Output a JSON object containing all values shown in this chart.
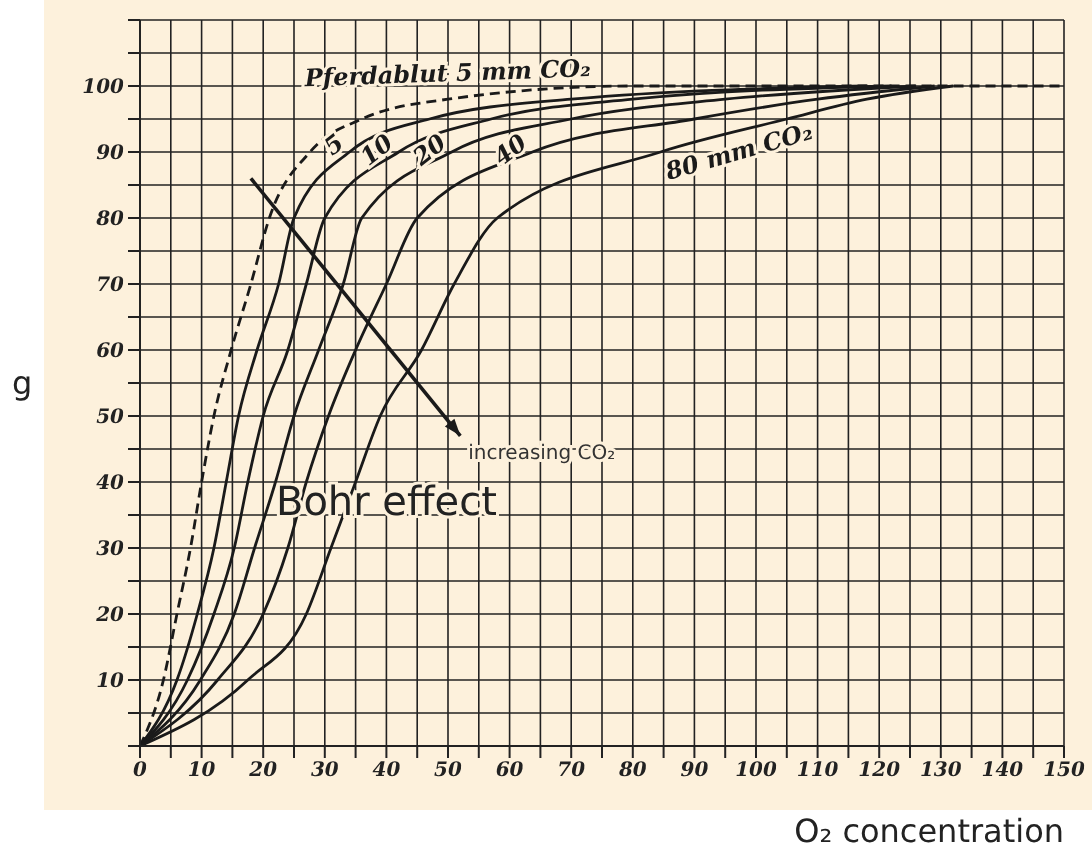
{
  "chart_data": {
    "type": "line",
    "ylabel": "g",
    "xlabel": "O₂ concentration",
    "annotations": [
      "Bohr effect",
      "increasing CO₂"
    ],
    "xlim": [
      0,
      150
    ],
    "xticks": [
      0,
      {
        "value": 5,
        "label": null
      },
      10,
      {
        "value": 15,
        "label": null
      },
      20,
      {
        "value": 25,
        "label": null
      },
      30,
      {
        "value": 35,
        "label": null
      },
      40,
      {
        "value": 45,
        "label": null
      },
      50,
      {
        "value": 55,
        "label": null
      },
      60,
      {
        "value": 65,
        "label": null
      },
      70,
      {
        "value": 75,
        "label": null
      },
      80,
      {
        "value": 85,
        "label": null
      },
      90,
      {
        "value": 95,
        "label": null
      },
      100,
      {
        "value": 105,
        "label": null
      },
      110,
      {
        "value": 115,
        "label": null
      },
      120,
      {
        "value": 125,
        "label": null
      },
      130,
      {
        "value": 135,
        "label": null
      },
      140,
      {
        "value": 145,
        "label": null
      },
      150
    ],
    "ylim": [
      0,
      110
    ],
    "yticks": [
      {
        "value": 0,
        "label": null
      },
      {
        "value": 5,
        "label": null
      },
      10,
      {
        "value": 15,
        "label": null
      },
      20,
      {
        "value": 25,
        "label": null
      },
      30,
      {
        "value": 35,
        "label": null
      },
      40,
      {
        "value": 45,
        "label": null
      },
      50,
      {
        "value": 55,
        "label": null
      },
      60,
      {
        "value": 65,
        "label": null
      },
      70,
      {
        "value": 75,
        "label": null
      },
      80,
      {
        "value": 85,
        "label": null
      },
      90,
      {
        "value": 95,
        "label": null
      },
      100,
      {
        "value": 105,
        "label": null
      },
      {
        "value": 110,
        "label": null
      }
    ],
    "grid": true,
    "marker": "none",
    "legend": false,
    "series": [
      {
        "name": "Pferdablut 5 mm CO₂",
        "color": "#1a1a1a",
        "line_style": "dashed",
        "x": [
          0,
          3.8,
          6,
          8.2,
          10,
          12,
          14.8,
          18,
          21,
          27.6,
          36,
          50,
          80,
          150
        ],
        "values": [
          0,
          10,
          20,
          30,
          40,
          50,
          60,
          70,
          80,
          90,
          95,
          98,
          100,
          100
        ]
      },
      {
        "name": "5",
        "color": "#1a1a1a",
        "line_style": "solid",
        "x": [
          0,
          6,
          9.3,
          12,
          14,
          16,
          19,
          22.5,
          25,
          34,
          47,
          70,
          118
        ],
        "values": [
          0,
          10,
          20,
          30,
          40,
          50,
          60,
          70,
          80,
          90,
          95,
          98,
          100
        ]
      },
      {
        "name": "10",
        "color": "#1a1a1a",
        "line_style": "solid",
        "x": [
          0,
          7.7,
          12,
          15.3,
          17.5,
          20,
          24,
          27,
          30,
          42,
          57,
          80,
          122
        ],
        "values": [
          0,
          10,
          20,
          30,
          40,
          50,
          60,
          70,
          80,
          90,
          95,
          98,
          100
        ]
      },
      {
        "name": "20",
        "color": "#1a1a1a",
        "line_style": "solid",
        "x": [
          0,
          9.8,
          15.3,
          18.6,
          22,
          25,
          29,
          33,
          36,
          50.6,
          70,
          95,
          126
        ],
        "values": [
          0,
          10,
          20,
          30,
          40,
          50,
          60,
          70,
          80,
          90,
          95,
          98,
          100
        ]
      },
      {
        "name": "40",
        "color": "#1a1a1a",
        "line_style": "solid",
        "x": [
          0,
          12.6,
          20,
          24,
          27,
          30.6,
          35,
          40,
          45,
          63.7,
          90,
          110,
          129
        ],
        "values": [
          0,
          10,
          20,
          30,
          40,
          50,
          60,
          70,
          80,
          90,
          95,
          98,
          100
        ]
      },
      {
        "name": "80 mm CO₂",
        "color": "#1a1a1a",
        "line_style": "solid",
        "x": [
          0,
          17.5,
          27,
          31,
          35,
          39,
          45.7,
          51,
          58,
          84.5,
          105,
          118,
          132
        ],
        "values": [
          0,
          10,
          20,
          30,
          40,
          50,
          60,
          70,
          80,
          90,
          95,
          98,
          100
        ]
      }
    ]
  }
}
